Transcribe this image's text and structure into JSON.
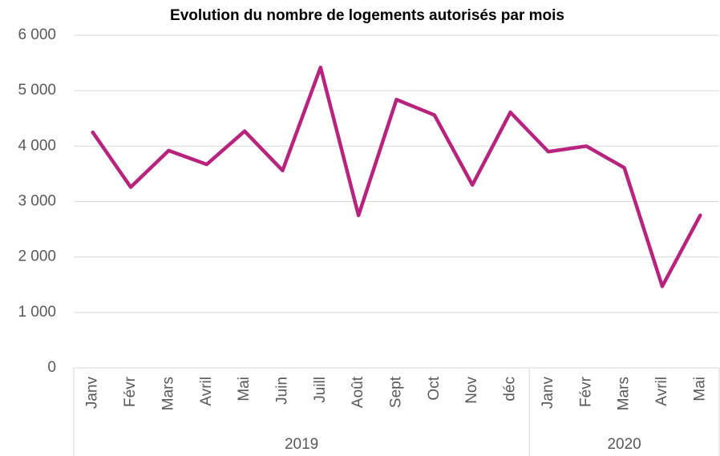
{
  "chart_data": {
    "type": "line",
    "title": "Evolution du nombre de logements autorisés par mois",
    "groups": [
      {
        "name": "2019",
        "categories": [
          "Janv",
          "Févr",
          "Mars",
          "Avril",
          "Mai",
          "Juin",
          "Juill",
          "Août",
          "Sept",
          "Oct",
          "Nov",
          "déc"
        ]
      },
      {
        "name": "2020",
        "categories": [
          "Janv",
          "Févr",
          "Mars",
          "Avril",
          "Mai"
        ]
      }
    ],
    "values": [
      4250,
      3260,
      3920,
      3670,
      4270,
      3560,
      5420,
      2750,
      4840,
      4560,
      3300,
      4610,
      3900,
      4000,
      3610,
      1470,
      2750
    ],
    "color": "#b8237e",
    "ylim": [
      0,
      6000
    ],
    "yticks": [
      0,
      {
        "value": 1000,
        "label": "1 000"
      },
      {
        "value": 2000,
        "label": "2 000"
      },
      {
        "value": 3000,
        "label": "3 000"
      },
      {
        "value": 4000,
        "label": "4 000"
      },
      {
        "value": 5000,
        "label": "5 000"
      },
      {
        "value": 6000,
        "label": "6 000"
      }
    ],
    "grid": true
  }
}
